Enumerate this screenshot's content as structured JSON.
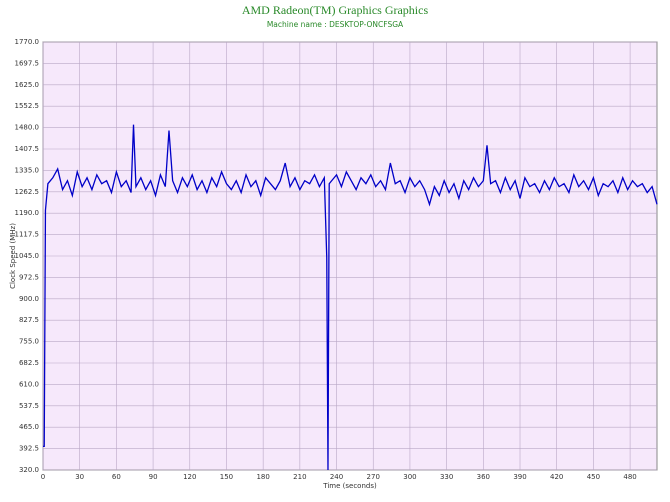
{
  "chart_data": {
    "type": "line",
    "title": "AMD Radeon(TM) Graphics Graphics",
    "subtitle": "Machine name : DESKTOP-ONCFSGA",
    "x_label": "Time (seconds)",
    "y_label": "Clock Speed (MHz)",
    "xlim": [
      0,
      502
    ],
    "ylim": [
      320,
      1770
    ],
    "xticks": [
      0,
      30,
      60,
      90,
      120,
      150,
      180,
      210,
      240,
      270,
      300,
      330,
      360,
      390,
      420,
      450,
      480
    ],
    "yticks": [
      {
        "value": 320,
        "label": "320.0"
      },
      392.5,
      {
        "value": 465,
        "label": "465.0"
      },
      537.5,
      {
        "value": 610,
        "label": "610.0"
      },
      682.5,
      {
        "value": 755,
        "label": "755.0"
      },
      827.5,
      {
        "value": 900,
        "label": "900.0"
      },
      972.5,
      {
        "value": 1045,
        "label": "1045.0"
      },
      1117.5,
      {
        "value": 1190,
        "label": "1190.0"
      },
      1262.5,
      {
        "value": 1335,
        "label": "1335.0"
      },
      1407.5,
      {
        "value": 1480,
        "label": "1480.0"
      },
      1552.5,
      {
        "value": 1625,
        "label": "1625.0"
      },
      1697.5,
      {
        "value": 1770,
        "label": "1770.0"
      }
    ],
    "grid": true,
    "background": "#f6e8fb",
    "x": [
      0,
      1,
      2,
      4,
      8,
      12,
      16,
      20,
      24,
      28,
      32,
      36,
      40,
      44,
      48,
      52,
      56,
      60,
      64,
      68,
      72,
      74,
      76,
      80,
      84,
      88,
      92,
      96,
      100,
      103,
      106,
      110,
      114,
      118,
      122,
      126,
      130,
      134,
      138,
      142,
      146,
      150,
      154,
      158,
      162,
      166,
      170,
      174,
      178,
      182,
      186,
      190,
      194,
      198,
      202,
      206,
      210,
      214,
      218,
      222,
      226,
      230,
      232,
      233,
      234,
      236,
      240,
      244,
      248,
      252,
      256,
      260,
      264,
      268,
      272,
      276,
      280,
      284,
      288,
      292,
      296,
      300,
      304,
      308,
      312,
      316,
      320,
      324,
      328,
      332,
      336,
      340,
      344,
      348,
      352,
      356,
      360,
      363,
      366,
      370,
      374,
      378,
      382,
      386,
      390,
      394,
      398,
      402,
      406,
      410,
      414,
      418,
      422,
      426,
      430,
      434,
      438,
      442,
      446,
      450,
      454,
      458,
      462,
      466,
      470,
      474,
      478,
      482,
      486,
      490,
      494,
      498,
      502
    ],
    "series": [
      {
        "name": "Clock Speed",
        "color": "#0000c8",
        "values": [
          400,
          400,
          1200,
          1290,
          1310,
          1340,
          1270,
          1300,
          1250,
          1330,
          1280,
          1310,
          1270,
          1320,
          1290,
          1300,
          1260,
          1330,
          1280,
          1300,
          1260,
          1490,
          1280,
          1310,
          1270,
          1300,
          1250,
          1320,
          1280,
          1470,
          1300,
          1260,
          1310,
          1280,
          1320,
          1270,
          1300,
          1260,
          1310,
          1280,
          1330,
          1290,
          1270,
          1300,
          1260,
          1320,
          1280,
          1300,
          1250,
          1310,
          1290,
          1270,
          1300,
          1360,
          1280,
          1310,
          1270,
          1300,
          1290,
          1320,
          1280,
          1310,
          1040,
          320,
          1290,
          1300,
          1320,
          1280,
          1330,
          1300,
          1270,
          1310,
          1290,
          1320,
          1280,
          1300,
          1270,
          1360,
          1290,
          1300,
          1260,
          1310,
          1280,
          1300,
          1270,
          1220,
          1280,
          1250,
          1300,
          1260,
          1290,
          1240,
          1300,
          1270,
          1310,
          1280,
          1300,
          1420,
          1290,
          1300,
          1260,
          1310,
          1270,
          1300,
          1240,
          1310,
          1280,
          1290,
          1260,
          1300,
          1270,
          1310,
          1280,
          1290,
          1260,
          1320,
          1280,
          1300,
          1270,
          1310,
          1250,
          1290,
          1280,
          1300,
          1260,
          1310,
          1270,
          1300,
          1280,
          1290,
          1260,
          1280,
          1220
        ]
      }
    ]
  }
}
